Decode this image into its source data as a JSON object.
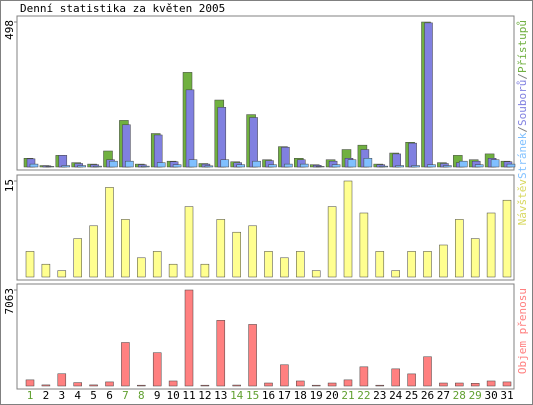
{
  "title": "Denní statistika za květen 2005",
  "chart_data": [
    {
      "type": "grouped-bar",
      "ylim": [
        0,
        498
      ],
      "yticks": [
        498
      ],
      "separator": "/",
      "categories": [
        "1",
        "2",
        "3",
        "4",
        "5",
        "6",
        "7",
        "8",
        "9",
        "10",
        "11",
        "12",
        "13",
        "14",
        "15",
        "16",
        "17",
        "18",
        "19",
        "20",
        "21",
        "22",
        "23",
        "24",
        "25",
        "26",
        "27",
        "28",
        "29",
        "30",
        "31"
      ],
      "category_colors": [
        "#60a030",
        "#000000",
        "#000000",
        "#000000",
        "#000000",
        "#000000",
        "#60a030",
        "#60a030",
        "#000000",
        "#000000",
        "#000000",
        "#000000",
        "#000000",
        "#60a030",
        "#60a030",
        "#000000",
        "#000000",
        "#000000",
        "#000000",
        "#000000",
        "#60a030",
        "#60a030",
        "#000000",
        "#000000",
        "#000000",
        "#000000",
        "#000000",
        "#60a030",
        "#60a030",
        "#000000",
        "#000000"
      ],
      "series": [
        {
          "name": "Přístupů",
          "color": "#70b040",
          "values": [
            30,
            5,
            40,
            15,
            10,
            55,
            160,
            10,
            115,
            20,
            325,
            12,
            230,
            18,
            180,
            25,
            70,
            30,
            8,
            25,
            60,
            75,
            10,
            48,
            85,
            498,
            15,
            40,
            25,
            45,
            20
          ]
        },
        {
          "name": "Souborů",
          "color": "#8080e0",
          "values": [
            28,
            4,
            40,
            12,
            8,
            25,
            145,
            8,
            110,
            18,
            265,
            10,
            205,
            15,
            170,
            22,
            68,
            25,
            6,
            20,
            30,
            60,
            8,
            45,
            82,
            495,
            12,
            15,
            20,
            30,
            18
          ]
        },
        {
          "name": "Stránek",
          "color": "#80c0ff",
          "values": [
            10,
            2,
            5,
            5,
            3,
            20,
            20,
            3,
            15,
            8,
            25,
            4,
            25,
            8,
            20,
            8,
            10,
            10,
            2,
            8,
            25,
            30,
            3,
            5,
            5,
            8,
            5,
            20,
            8,
            25,
            10
          ]
        }
      ]
    },
    {
      "type": "bar",
      "ylim": [
        0,
        15
      ],
      "yticks": [
        15
      ],
      "series": [
        {
          "name": "Návštěv",
          "color": "#ffff90",
          "label_color": "#d8d860",
          "values": [
            4,
            2,
            1,
            6,
            8,
            14,
            9,
            3,
            4,
            2,
            11,
            2,
            9,
            7,
            8,
            4,
            3,
            4,
            1,
            11,
            15,
            10,
            4,
            1,
            4,
            4,
            5,
            9,
            6,
            10,
            12
          ]
        }
      ]
    },
    {
      "type": "bar",
      "ylim": [
        0,
        7063
      ],
      "yticks": [
        7063
      ],
      "series": [
        {
          "name": "Objem přenosu",
          "color": "#ff8080",
          "label_color": "#ff8080",
          "values": [
            450,
            80,
            900,
            250,
            80,
            300,
            3200,
            60,
            2450,
            370,
            7063,
            60,
            4830,
            70,
            4530,
            220,
            1560,
            370,
            60,
            220,
            450,
            1410,
            60,
            1260,
            890,
            2150,
            220,
            220,
            200,
            370,
            300
          ]
        }
      ]
    }
  ]
}
